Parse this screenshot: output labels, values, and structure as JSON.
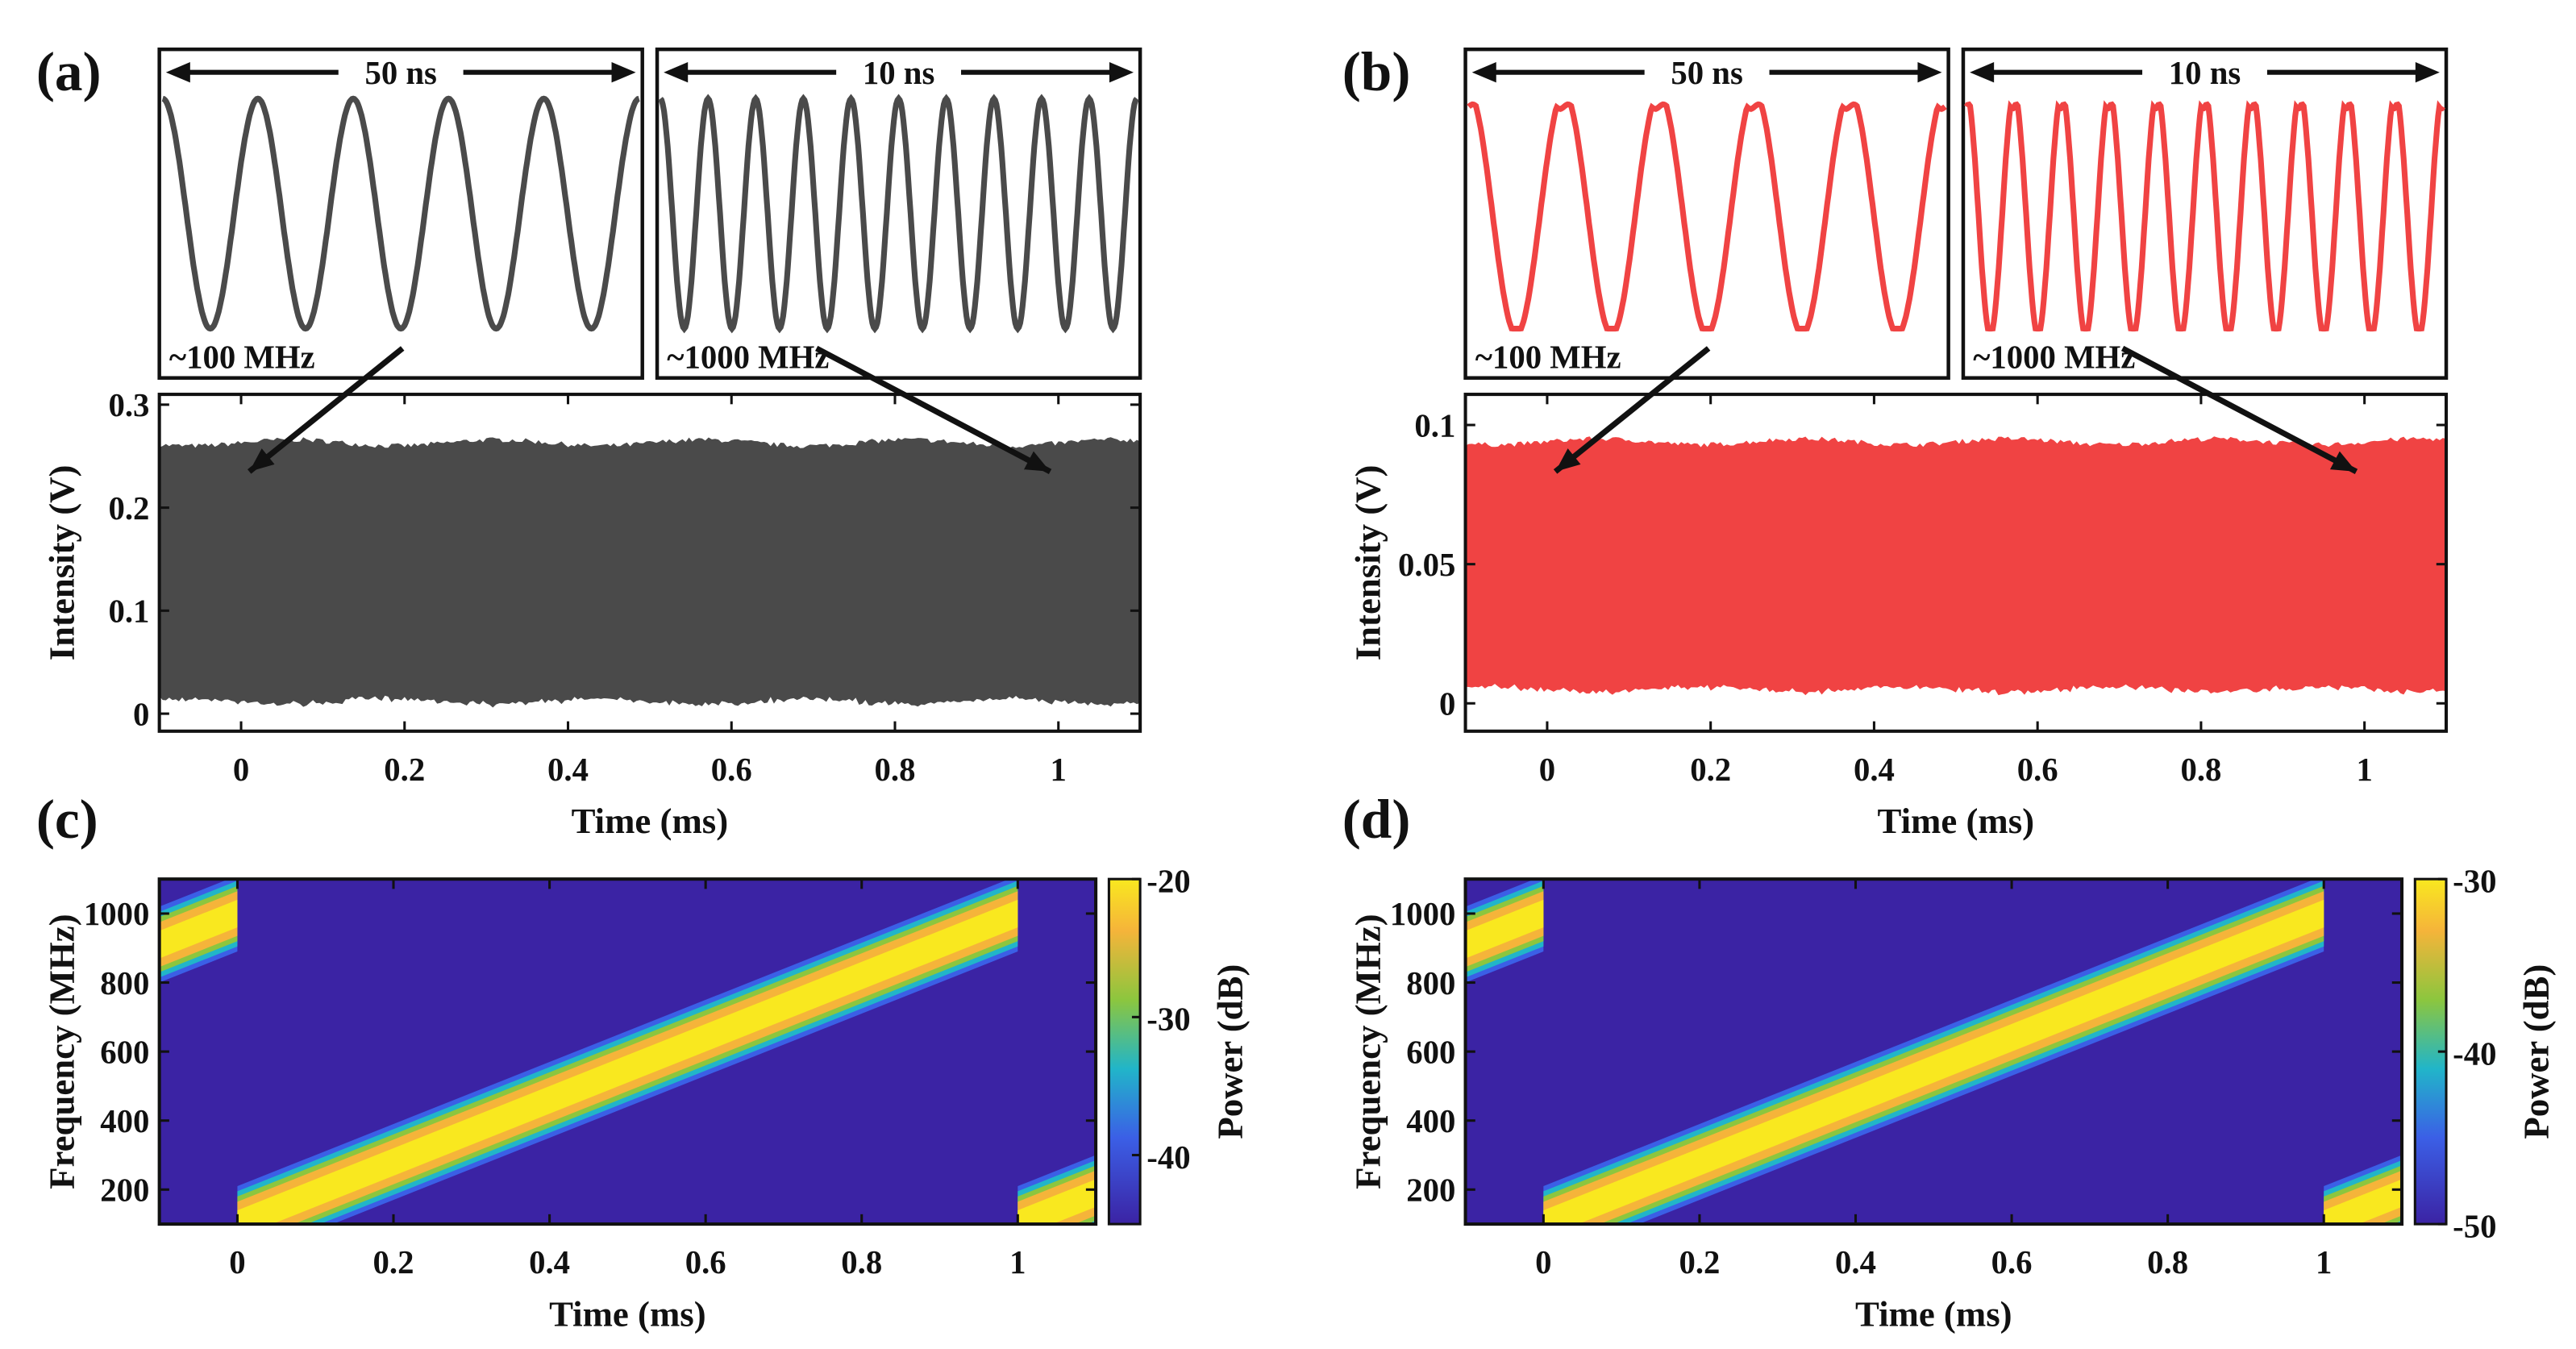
{
  "colors": {
    "gray": "#4a4a4a",
    "red": "#f04343",
    "bg_blue": "#3b23a4",
    "yellow": "#f9e81f",
    "orange": "#f5b43a",
    "cyan": "#21b5c9",
    "blue": "#3b5fe6"
  },
  "chart_data": [
    {
      "panel": "(a)",
      "type": "area",
      "series_color": "gray",
      "title": "",
      "xlabel": "Time (ms)",
      "ylabel": "Intensity (V)",
      "xlim": [
        -0.1,
        1.1
      ],
      "ylim": [
        -0.017,
        0.31
      ],
      "xticks": [
        "0",
        "0.2",
        "0.4",
        "0.6",
        "0.8",
        "1"
      ],
      "xtick_values": [
        0,
        0.2,
        0.4,
        0.6,
        0.8,
        1
      ],
      "yticks": [
        "0",
        "0.1",
        "0.2",
        "0.3"
      ],
      "ytick_values": [
        0,
        0.1,
        0.2,
        0.3
      ],
      "envelope": {
        "upper": 0.263,
        "lower": 0.012
      },
      "insets": [
        {
          "span_label": "50 ns",
          "freq_label": "~100 MHz",
          "cycles": 5,
          "points_to_time": 0
        },
        {
          "span_label": "10 ns",
          "freq_label": "~1000 MHz",
          "cycles": 10,
          "points_to_time": 1
        }
      ]
    },
    {
      "panel": "(b)",
      "type": "area",
      "series_color": "red",
      "title": "",
      "xlabel": "Time (ms)",
      "ylabel": "Intensity (V)",
      "xlim": [
        -0.1,
        1.1
      ],
      "ylim": [
        -0.01,
        0.111
      ],
      "xticks": [
        "0",
        "0.2",
        "0.4",
        "0.6",
        "0.8",
        "1"
      ],
      "xtick_values": [
        0,
        0.2,
        0.4,
        0.6,
        0.8,
        1
      ],
      "yticks": [
        "0",
        "0.05",
        "0.1"
      ],
      "ytick_values": [
        0,
        0.05,
        0.1
      ],
      "envelope": {
        "upper": 0.094,
        "lower": 0.005
      },
      "insets": [
        {
          "span_label": "50 ns",
          "freq_label": "~100 MHz",
          "cycles": 5,
          "points_to_time": 0
        },
        {
          "span_label": "10 ns",
          "freq_label": "~1000 MHz",
          "cycles": 10,
          "points_to_time": 1
        }
      ]
    },
    {
      "panel": "(c)",
      "type": "heatmap",
      "title": "",
      "xlabel": "Time (ms)",
      "ylabel": "Frequency (MHz)",
      "xlim": [
        -0.1,
        1.1
      ],
      "ylim": [
        100,
        1100
      ],
      "xticks": [
        "0",
        "0.2",
        "0.4",
        "0.6",
        "0.8",
        "1"
      ],
      "xtick_values": [
        0,
        0.2,
        0.4,
        0.6,
        0.8,
        1
      ],
      "yticks": [
        "200",
        "400",
        "600",
        "800",
        "1000"
      ],
      "ytick_values": [
        200,
        400,
        600,
        800,
        1000
      ],
      "chirp": {
        "start_mhz": 100,
        "end_mhz": 1000,
        "period_ms": 1
      },
      "colorbar": {
        "label": "Power (dB)",
        "range": [
          -45,
          -20
        ],
        "ticks": [
          "-20",
          "-30",
          "-40"
        ],
        "tick_values": [
          -20,
          -30,
          -40
        ]
      }
    },
    {
      "panel": "(d)",
      "type": "heatmap",
      "title": "",
      "xlabel": "Time (ms)",
      "ylabel": "Frequency (MHz)",
      "xlim": [
        -0.1,
        1.1
      ],
      "ylim": [
        100,
        1100
      ],
      "xticks": [
        "0",
        "0.2",
        "0.4",
        "0.6",
        "0.8",
        "1"
      ],
      "xtick_values": [
        0,
        0.2,
        0.4,
        0.6,
        0.8,
        1
      ],
      "yticks": [
        "200",
        "400",
        "600",
        "800",
        "1000"
      ],
      "ytick_values": [
        200,
        400,
        600,
        800,
        1000
      ],
      "chirp": {
        "start_mhz": 100,
        "end_mhz": 1000,
        "period_ms": 1
      },
      "colorbar": {
        "label": "Power (dB)",
        "range": [
          -50,
          -30
        ],
        "ticks": [
          "-30",
          "-40",
          "-50"
        ],
        "tick_values": [
          -30,
          -40,
          -50
        ]
      }
    }
  ]
}
